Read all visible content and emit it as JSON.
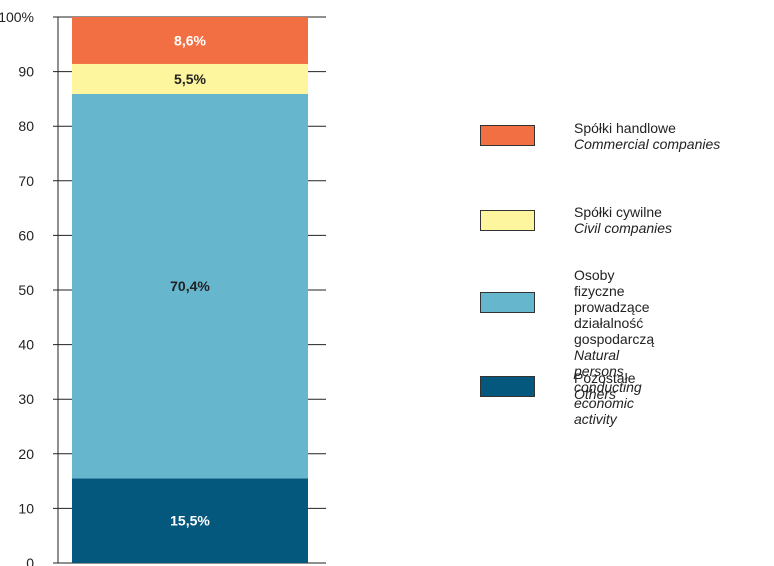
{
  "chart_data": {
    "type": "bar",
    "stacked": true,
    "categories": [
      ""
    ],
    "series": [
      {
        "name": "Pozostałe / Others",
        "values": [
          15.5
        ],
        "label": "15,5%",
        "color": "#04577D",
        "label_color": "#ffffff"
      },
      {
        "name": "Osoby fizyczne prowadzące działalność gospodarczą / Natural persons conducting economic activity",
        "values": [
          70.4
        ],
        "label": "70,4%",
        "color": "#66B6CE",
        "label_color": "#222222"
      },
      {
        "name": "Spółki cywilne / Civil companies",
        "values": [
          5.5
        ],
        "label": "5,5%",
        "color": "#FEF69E",
        "label_color": "#222222"
      },
      {
        "name": "Spółki handlowe / Commercial companies",
        "values": [
          8.6
        ],
        "label": "8,6%",
        "color": "#F26E43",
        "label_color": "#ffffff"
      }
    ],
    "ylim": [
      0,
      100
    ],
    "yticks": [
      {
        "value": 0,
        "label": "0"
      },
      {
        "value": 10,
        "label": "10"
      },
      {
        "value": 20,
        "label": "20"
      },
      {
        "value": 30,
        "label": "30"
      },
      {
        "value": 40,
        "label": "40"
      },
      {
        "value": 50,
        "label": "50"
      },
      {
        "value": 60,
        "label": "60"
      },
      {
        "value": 70,
        "label": "70"
      },
      {
        "value": 80,
        "label": "80"
      },
      {
        "value": 90,
        "label": "90"
      },
      {
        "value": 100,
        "label": "100%"
      }
    ],
    "title": "",
    "xlabel": "",
    "ylabel": "",
    "grid": false,
    "legend_position": "right"
  },
  "legend": {
    "items": [
      {
        "pl": "Spółki handlowe",
        "en": "Commercial companies",
        "color": "#F26E43"
      },
      {
        "pl": "Spółki cywilne",
        "en": "Civil companies",
        "color": "#FEF69E"
      },
      {
        "pl": "Osoby fizyczne prowadzące\ndziałalność gospodarczą",
        "en": "Natural persons conducting\neconomic activity",
        "color": "#66B6CE"
      },
      {
        "pl": "Pozostałe",
        "en": "Others",
        "color": "#04577D"
      }
    ]
  }
}
